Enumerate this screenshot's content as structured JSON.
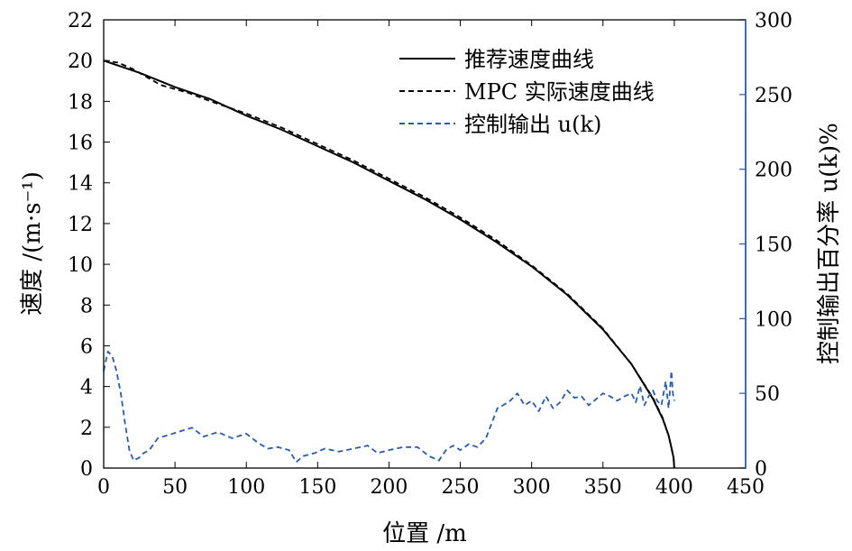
{
  "chart_data": {
    "type": "line",
    "xlabel": "位置 /m",
    "ylabel_left": "速度 /(m·s⁻¹)",
    "ylabel_right": "控制输出百分率 u(k)%",
    "xlim": [
      0,
      450
    ],
    "ylim_left": [
      0,
      22
    ],
    "ylim_right": [
      0,
      300
    ],
    "x_ticks": [
      0,
      50,
      100,
      150,
      200,
      250,
      300,
      350,
      400,
      450
    ],
    "y_ticks_left": [
      0,
      2,
      4,
      6,
      8,
      10,
      12,
      14,
      16,
      18,
      20,
      22
    ],
    "y_ticks_right": [
      0,
      50,
      100,
      150,
      200,
      250,
      300
    ],
    "grid": false,
    "legend_position": "top-right",
    "series": [
      {
        "name": "推荐速度曲线",
        "axis": "left",
        "style": "solid",
        "color": "#000000",
        "x": [
          0,
          25,
          50,
          75,
          100,
          125,
          150,
          175,
          200,
          225,
          250,
          275,
          300,
          325,
          350,
          370,
          385,
          392,
          396,
          398,
          399.5,
          400
        ],
        "y": [
          20.0,
          19.4,
          18.7,
          18.1,
          17.3,
          16.6,
          15.8,
          15.0,
          14.1,
          13.2,
          12.2,
          11.1,
          9.9,
          8.5,
          6.8,
          5.1,
          3.4,
          2.4,
          1.6,
          1.0,
          0.5,
          0.0
        ]
      },
      {
        "name": "MPC 实际速度曲线",
        "axis": "left",
        "style": "dashed",
        "color": "#000000",
        "x": [
          0,
          10,
          20,
          30,
          40,
          50,
          60,
          75,
          100,
          125,
          150,
          175,
          200,
          225,
          250,
          275,
          300,
          325,
          350,
          370,
          385,
          392,
          396,
          398,
          399.5,
          400
        ],
        "y": [
          20.0,
          19.9,
          19.6,
          19.2,
          18.8,
          18.6,
          18.4,
          18.0,
          17.4,
          16.7,
          15.9,
          15.1,
          14.2,
          13.3,
          12.3,
          11.2,
          9.95,
          8.55,
          6.85,
          5.1,
          3.45,
          2.45,
          1.6,
          1.0,
          0.5,
          0.0
        ]
      },
      {
        "name": "控制输出 u(k)",
        "axis": "right",
        "style": "dashed",
        "color": "#2a5ba8",
        "x": [
          0,
          3,
          6,
          9,
          12,
          15,
          18,
          21,
          25,
          28,
          32,
          38,
          45,
          55,
          62,
          70,
          80,
          90,
          100,
          108,
          115,
          122,
          130,
          135,
          140,
          148,
          155,
          165,
          175,
          185,
          192,
          200,
          210,
          220,
          228,
          235,
          240,
          245,
          250,
          256,
          262,
          268,
          272,
          276,
          280,
          285,
          290,
          295,
          300,
          305,
          310,
          315,
          320,
          325,
          330,
          335,
          340,
          345,
          350,
          355,
          360,
          365,
          370,
          373,
          376,
          379,
          382,
          385,
          388,
          391,
          394,
          396,
          398,
          399,
          400
        ],
        "y": [
          65,
          78,
          75,
          65,
          50,
          30,
          12,
          5,
          7,
          10,
          12,
          20,
          22,
          25,
          27,
          21,
          24,
          20,
          23,
          17,
          13,
          14,
          12,
          4,
          8,
          10,
          13,
          11,
          13,
          15,
          10,
          12,
          14,
          14,
          8,
          5,
          12,
          15,
          12,
          16,
          14,
          20,
          30,
          40,
          42,
          45,
          50,
          42,
          45,
          38,
          48,
          40,
          44,
          52,
          47,
          48,
          42,
          46,
          50,
          48,
          45,
          48,
          50,
          44,
          55,
          42,
          48,
          52,
          45,
          42,
          58,
          40,
          65,
          50,
          45
        ]
      }
    ]
  }
}
